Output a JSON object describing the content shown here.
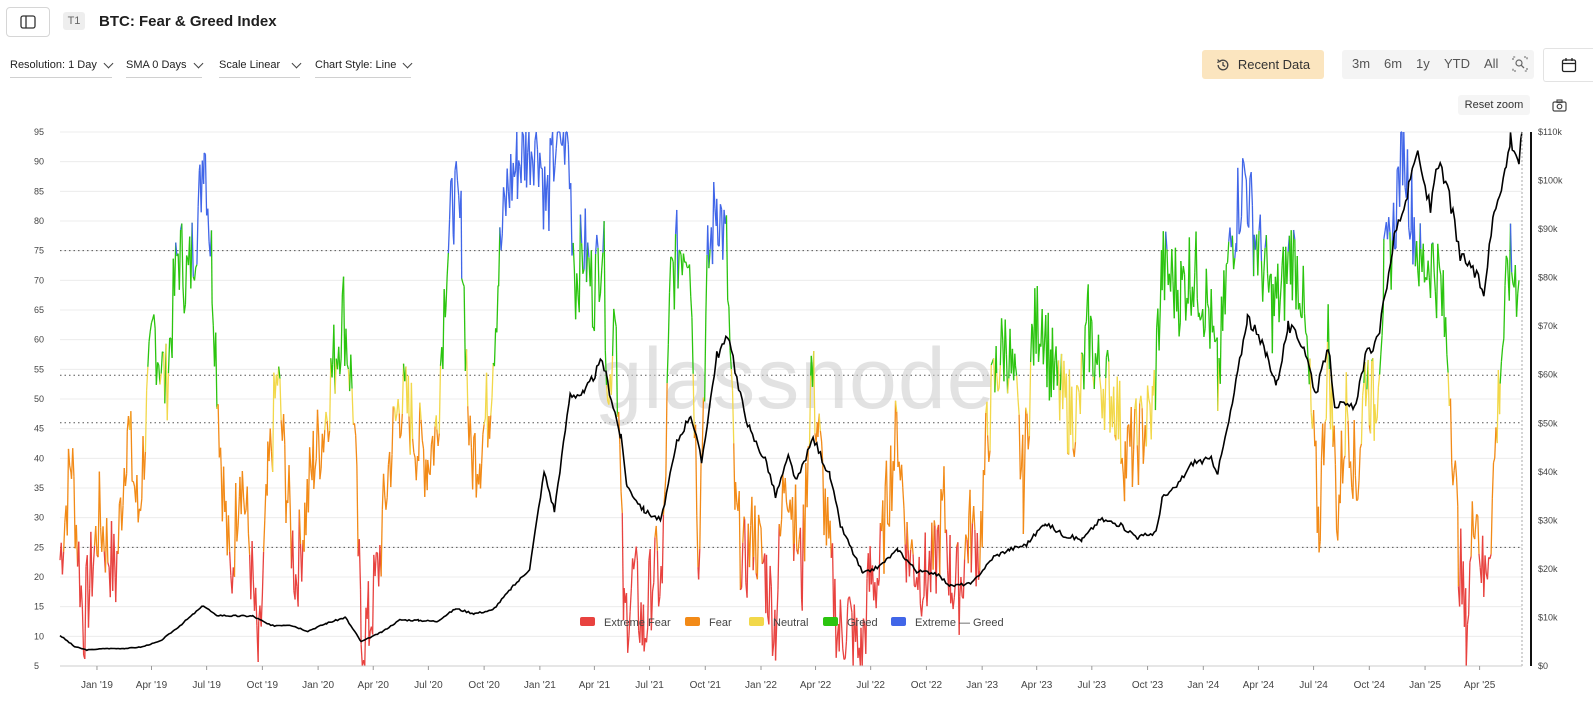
{
  "header": {
    "badge": "T1",
    "title": "BTC: Fear & Greed Index"
  },
  "controls": {
    "resolution": "Resolution: 1 Day",
    "sma": "SMA 0 Days",
    "scale": "Scale Linear",
    "chart_style": "Chart Style: Line",
    "recent_data": "Recent Data",
    "ranges": [
      "3m",
      "6m",
      "1y",
      "YTD",
      "All"
    ],
    "reset_zoom": "Reset zoom"
  },
  "icons": {
    "sidebar": "sidebar-toggle-icon",
    "history": "history-icon",
    "zoom": "zoom-select-icon",
    "calendar": "calendar-icon",
    "camera": "camera-icon"
  },
  "colors": {
    "extreme_fear": "#e8423f",
    "fear": "#f28a17",
    "neutral": "#f2d84a",
    "greed": "#2bc40f",
    "extreme_greed": "#4166e8",
    "price": "#000000",
    "recent_data_bg": "#fbe5bf"
  },
  "watermark": "glassnode",
  "chart_data": {
    "type": "line",
    "x_start": "2018-11-01",
    "x_end": "2025-06-10",
    "left_axis": {
      "ticks": [
        5,
        10,
        15,
        20,
        25,
        30,
        35,
        40,
        45,
        50,
        55,
        60,
        65,
        70,
        75,
        80,
        85,
        90,
        95
      ],
      "range": [
        5,
        95
      ]
    },
    "right_axis": {
      "ticks": [
        "$0",
        "$10k",
        "$20k",
        "$30k",
        "$40k",
        "$50k",
        "$60k",
        "$70k",
        "$80k",
        "$90k",
        "$100k",
        "$110k"
      ],
      "range": [
        0,
        110000
      ]
    },
    "x_ticks": [
      "Jan '19",
      "Apr '19",
      "Jul '19",
      "Oct '19",
      "Jan '20",
      "Apr '20",
      "Jul '20",
      "Oct '20",
      "Jan '21",
      "Apr '21",
      "Jul '21",
      "Oct '21",
      "Jan '22",
      "Apr '22",
      "Jul '22",
      "Oct '22",
      "Jan '23",
      "Apr '23",
      "Jul '23",
      "Oct '23",
      "Jan '24",
      "Apr '24",
      "Jul '24",
      "Oct '24",
      "Jan '25",
      "Apr '25"
    ],
    "threshold_lines": [
      25,
      46,
      54,
      75
    ],
    "zones": [
      {
        "name": "Extreme Fear",
        "from": 0,
        "to": 25
      },
      {
        "name": "Fear",
        "from": 25,
        "to": 46
      },
      {
        "name": "Neutral",
        "from": 46,
        "to": 54
      },
      {
        "name": "Greed",
        "from": 54,
        "to": 75
      },
      {
        "name": "Extreme Greed",
        "from": 75,
        "to": 100
      }
    ],
    "legend": [
      "Extreme Fear",
      "Fear",
      "Neutral",
      "Greed",
      "Extreme —",
      "Greed"
    ],
    "series": [
      {
        "name": "Fear & Greed Index",
        "points": [
          [
            "2018-11-01",
            23
          ],
          [
            "2018-11-20",
            40
          ],
          [
            "2018-12-10",
            12
          ],
          [
            "2019-01-05",
            30
          ],
          [
            "2019-02-01",
            20
          ],
          [
            "2019-02-20",
            46
          ],
          [
            "2019-03-10",
            30
          ],
          [
            "2019-04-05",
            62
          ],
          [
            "2019-04-25",
            52
          ],
          [
            "2019-05-15",
            75
          ],
          [
            "2019-06-01",
            70
          ],
          [
            "2019-06-20",
            84
          ],
          [
            "2019-06-27",
            95
          ],
          [
            "2019-07-10",
            72
          ],
          [
            "2019-07-25",
            40
          ],
          [
            "2019-08-10",
            18
          ],
          [
            "2019-08-25",
            40
          ],
          [
            "2019-09-10",
            25
          ],
          [
            "2019-09-25",
            5
          ],
          [
            "2019-10-10",
            35
          ],
          [
            "2019-10-26",
            54
          ],
          [
            "2019-11-10",
            35
          ],
          [
            "2019-11-25",
            20
          ],
          [
            "2019-12-10",
            30
          ],
          [
            "2019-12-25",
            40
          ],
          [
            "2020-01-10",
            45
          ],
          [
            "2020-01-25",
            55
          ],
          [
            "2020-02-12",
            65
          ],
          [
            "2020-02-28",
            50
          ],
          [
            "2020-03-12",
            10
          ],
          [
            "2020-03-25",
            12
          ],
          [
            "2020-04-10",
            22
          ],
          [
            "2020-04-28",
            40
          ],
          [
            "2020-05-15",
            50
          ],
          [
            "2020-05-30",
            48
          ],
          [
            "2020-06-15",
            42
          ],
          [
            "2020-06-30",
            40
          ],
          [
            "2020-07-15",
            45
          ],
          [
            "2020-07-30",
            72
          ],
          [
            "2020-08-12",
            84
          ],
          [
            "2020-08-25",
            78
          ],
          [
            "2020-09-08",
            40
          ],
          [
            "2020-09-25",
            42
          ],
          [
            "2020-10-10",
            50
          ],
          [
            "2020-10-25",
            72
          ],
          [
            "2020-11-08",
            85
          ],
          [
            "2020-11-25",
            90
          ],
          [
            "2020-12-10",
            92
          ],
          [
            "2020-12-28",
            95
          ],
          [
            "2021-01-12",
            82
          ],
          [
            "2021-01-28",
            94
          ],
          [
            "2021-02-15",
            95
          ],
          [
            "2021-03-01",
            70
          ],
          [
            "2021-03-15",
            76
          ],
          [
            "2021-03-30",
            68
          ],
          [
            "2021-04-15",
            78
          ],
          [
            "2021-04-25",
            48
          ],
          [
            "2021-05-05",
            70
          ],
          [
            "2021-05-20",
            12
          ],
          [
            "2021-06-05",
            20
          ],
          [
            "2021-06-22",
            10
          ],
          [
            "2021-07-08",
            22
          ],
          [
            "2021-07-22",
            18
          ],
          [
            "2021-08-05",
            70
          ],
          [
            "2021-08-20",
            76
          ],
          [
            "2021-09-05",
            78
          ],
          [
            "2021-09-20",
            25
          ],
          [
            "2021-10-05",
            72
          ],
          [
            "2021-10-20",
            84
          ],
          [
            "2021-11-05",
            75
          ],
          [
            "2021-11-20",
            30
          ],
          [
            "2021-12-05",
            22
          ],
          [
            "2021-12-20",
            28
          ],
          [
            "2022-01-10",
            20
          ],
          [
            "2022-01-25",
            12
          ],
          [
            "2022-02-10",
            40
          ],
          [
            "2022-02-25",
            30
          ],
          [
            "2022-03-10",
            20
          ],
          [
            "2022-03-25",
            55
          ],
          [
            "2022-04-05",
            45
          ],
          [
            "2022-04-25",
            22
          ],
          [
            "2022-05-10",
            10
          ],
          [
            "2022-05-25",
            13
          ],
          [
            "2022-06-15",
            6
          ],
          [
            "2022-06-30",
            20
          ],
          [
            "2022-07-15",
            20
          ],
          [
            "2022-07-30",
            35
          ],
          [
            "2022-08-15",
            45
          ],
          [
            "2022-08-30",
            25
          ],
          [
            "2022-09-15",
            22
          ],
          [
            "2022-09-30",
            20
          ],
          [
            "2022-10-15",
            22
          ],
          [
            "2022-10-30",
            32
          ],
          [
            "2022-11-10",
            20
          ],
          [
            "2022-11-25",
            18
          ],
          [
            "2022-12-10",
            28
          ],
          [
            "2022-12-28",
            25
          ],
          [
            "2023-01-10",
            45
          ],
          [
            "2023-01-25",
            55
          ],
          [
            "2023-02-10",
            60
          ],
          [
            "2023-02-25",
            50
          ],
          [
            "2023-03-10",
            35
          ],
          [
            "2023-03-25",
            60
          ],
          [
            "2023-04-10",
            65
          ],
          [
            "2023-04-25",
            55
          ],
          [
            "2023-05-10",
            50
          ],
          [
            "2023-05-25",
            48
          ],
          [
            "2023-06-10",
            48
          ],
          [
            "2023-06-25",
            62
          ],
          [
            "2023-07-10",
            55
          ],
          [
            "2023-07-25",
            52
          ],
          [
            "2023-08-10",
            50
          ],
          [
            "2023-08-25",
            40
          ],
          [
            "2023-09-10",
            42
          ],
          [
            "2023-09-25",
            45
          ],
          [
            "2023-10-10",
            48
          ],
          [
            "2023-10-25",
            72
          ],
          [
            "2023-11-10",
            70
          ],
          [
            "2023-11-25",
            68
          ],
          [
            "2023-12-10",
            72
          ],
          [
            "2023-12-25",
            70
          ],
          [
            "2024-01-10",
            65
          ],
          [
            "2024-01-25",
            52
          ],
          [
            "2024-02-10",
            72
          ],
          [
            "2024-02-25",
            82
          ],
          [
            "2024-03-10",
            88
          ],
          [
            "2024-03-25",
            78
          ],
          [
            "2024-04-10",
            72
          ],
          [
            "2024-04-25",
            65
          ],
          [
            "2024-05-10",
            68
          ],
          [
            "2024-05-25",
            75
          ],
          [
            "2024-06-10",
            70
          ],
          [
            "2024-06-25",
            50
          ],
          [
            "2024-07-10",
            28
          ],
          [
            "2024-07-25",
            60
          ],
          [
            "2024-08-10",
            30
          ],
          [
            "2024-08-25",
            50
          ],
          [
            "2024-09-10",
            35
          ],
          [
            "2024-09-25",
            55
          ],
          [
            "2024-10-10",
            48
          ],
          [
            "2024-10-25",
            70
          ],
          [
            "2024-11-10",
            78
          ],
          [
            "2024-11-25",
            94
          ],
          [
            "2024-12-10",
            82
          ],
          [
            "2024-12-25",
            72
          ],
          [
            "2025-01-10",
            74
          ],
          [
            "2025-01-25",
            70
          ],
          [
            "2025-02-10",
            55
          ],
          [
            "2025-02-25",
            25
          ],
          [
            "2025-03-10",
            10
          ],
          [
            "2025-03-25",
            35
          ],
          [
            "2025-04-08",
            18
          ],
          [
            "2025-04-20",
            30
          ],
          [
            "2025-05-05",
            55
          ],
          [
            "2025-05-20",
            72
          ],
          [
            "2025-06-05",
            70
          ]
        ]
      },
      {
        "name": "BTC Price",
        "axis": "right",
        "points": [
          [
            "2018-11-01",
            6300
          ],
          [
            "2018-11-25",
            4000
          ],
          [
            "2018-12-15",
            3300
          ],
          [
            "2019-01-15",
            3600
          ],
          [
            "2019-02-15",
            3600
          ],
          [
            "2019-03-15",
            3900
          ],
          [
            "2019-04-15",
            5100
          ],
          [
            "2019-05-15",
            8000
          ],
          [
            "2019-06-26",
            12500
          ],
          [
            "2019-07-15",
            10500
          ],
          [
            "2019-08-15",
            10300
          ],
          [
            "2019-09-15",
            10300
          ],
          [
            "2019-10-15",
            8300
          ],
          [
            "2019-11-15",
            8500
          ],
          [
            "2019-12-15",
            7200
          ],
          [
            "2020-01-15",
            8800
          ],
          [
            "2020-02-15",
            10000
          ],
          [
            "2020-03-12",
            5000
          ],
          [
            "2020-04-15",
            7000
          ],
          [
            "2020-05-15",
            9500
          ],
          [
            "2020-06-15",
            9400
          ],
          [
            "2020-07-15",
            9200
          ],
          [
            "2020-08-15",
            11800
          ],
          [
            "2020-09-15",
            10800
          ],
          [
            "2020-10-15",
            11500
          ],
          [
            "2020-11-15",
            16000
          ],
          [
            "2020-12-15",
            20000
          ],
          [
            "2021-01-08",
            40000
          ],
          [
            "2021-01-25",
            32000
          ],
          [
            "2021-02-20",
            56000
          ],
          [
            "2021-03-15",
            56000
          ],
          [
            "2021-04-14",
            63000
          ],
          [
            "2021-05-15",
            47000
          ],
          [
            "2021-05-25",
            37000
          ],
          [
            "2021-06-22",
            32000
          ],
          [
            "2021-07-20",
            30000
          ],
          [
            "2021-08-15",
            46000
          ],
          [
            "2021-09-07",
            52000
          ],
          [
            "2021-09-25",
            42000
          ],
          [
            "2021-10-20",
            64000
          ],
          [
            "2021-11-10",
            68000
          ],
          [
            "2021-11-25",
            57000
          ],
          [
            "2021-12-15",
            48000
          ],
          [
            "2022-01-10",
            42000
          ],
          [
            "2022-01-25",
            35000
          ],
          [
            "2022-02-15",
            43000
          ],
          [
            "2022-03-01",
            38000
          ],
          [
            "2022-03-28",
            47000
          ],
          [
            "2022-04-25",
            39000
          ],
          [
            "2022-05-12",
            29000
          ],
          [
            "2022-06-18",
            19000
          ],
          [
            "2022-07-15",
            20500
          ],
          [
            "2022-08-15",
            24000
          ],
          [
            "2022-09-15",
            19500
          ],
          [
            "2022-10-15",
            19200
          ],
          [
            "2022-11-10",
            16500
          ],
          [
            "2022-12-15",
            17000
          ],
          [
            "2023-01-20",
            22500
          ],
          [
            "2023-02-15",
            24000
          ],
          [
            "2023-03-15",
            25000
          ],
          [
            "2023-04-15",
            29500
          ],
          [
            "2023-05-15",
            27000
          ],
          [
            "2023-06-15",
            26000
          ],
          [
            "2023-07-15",
            30200
          ],
          [
            "2023-08-15",
            29200
          ],
          [
            "2023-09-15",
            26500
          ],
          [
            "2023-10-15",
            27500
          ],
          [
            "2023-10-25",
            34500
          ],
          [
            "2023-11-15",
            36500
          ],
          [
            "2023-12-15",
            42000
          ],
          [
            "2024-01-15",
            42500
          ],
          [
            "2024-01-25",
            40000
          ],
          [
            "2024-02-15",
            52000
          ],
          [
            "2024-03-14",
            72000
          ],
          [
            "2024-04-15",
            64000
          ],
          [
            "2024-05-01",
            58000
          ],
          [
            "2024-05-20",
            70000
          ],
          [
            "2024-06-15",
            66000
          ],
          [
            "2024-07-05",
            56000
          ],
          [
            "2024-07-25",
            66000
          ],
          [
            "2024-08-05",
            54000
          ],
          [
            "2024-09-06",
            53000
          ],
          [
            "2024-09-25",
            64000
          ],
          [
            "2024-10-15",
            67000
          ],
          [
            "2024-11-12",
            89000
          ],
          [
            "2024-12-05",
            98000
          ],
          [
            "2024-12-17",
            106000
          ],
          [
            "2025-01-10",
            94000
          ],
          [
            "2025-01-20",
            104000
          ],
          [
            "2025-02-10",
            97000
          ],
          [
            "2025-02-28",
            84000
          ],
          [
            "2025-03-15",
            83000
          ],
          [
            "2025-04-08",
            77000
          ],
          [
            "2025-04-25",
            94000
          ],
          [
            "2025-05-15",
            103000
          ],
          [
            "2025-05-22",
            109000
          ],
          [
            "2025-06-05",
            104000
          ],
          [
            "2025-06-10",
            110000
          ]
        ]
      }
    ]
  }
}
